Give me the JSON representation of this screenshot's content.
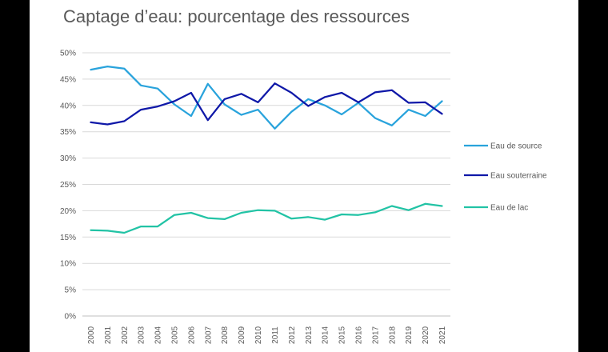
{
  "title": "Captage d’eau: pourcentage des ressources",
  "chart_data": {
    "type": "line",
    "title": "Captage d’eau: pourcentage des ressources",
    "x": [
      "2000",
      "2001",
      "2002",
      "2003",
      "2004",
      "2005",
      "2006",
      "2007",
      "2008",
      "2009",
      "2010",
      "2011",
      "2012",
      "2013",
      "2014",
      "2015",
      "2016",
      "2017",
      "2018",
      "2019",
      "2020",
      "2021"
    ],
    "y_ticks": [
      "0%",
      "5%",
      "10%",
      "15%",
      "20%",
      "25%",
      "30%",
      "35%",
      "40%",
      "45%",
      "50%"
    ],
    "ylim": [
      0,
      50
    ],
    "grid": true,
    "legend_position": "right",
    "series": [
      {
        "name": "Eau de source",
        "color": "#29a3dc",
        "values": [
          46.8,
          47.4,
          47.0,
          43.8,
          43.2,
          40.2,
          38.0,
          44.1,
          40.2,
          38.2,
          39.2,
          35.6,
          38.8,
          41.2,
          40.0,
          38.3,
          40.5,
          37.6,
          36.2,
          39.2,
          38.0,
          40.8
        ]
      },
      {
        "name": "Eau souterraine",
        "color": "#0f18a8",
        "values": [
          36.8,
          36.4,
          37.0,
          39.2,
          39.8,
          40.8,
          42.4,
          37.2,
          41.2,
          42.2,
          40.6,
          44.2,
          42.4,
          39.9,
          41.6,
          42.4,
          40.6,
          42.5,
          42.9,
          40.5,
          40.6,
          38.4
        ]
      },
      {
        "name": "Eau de lac",
        "color": "#22c3a5",
        "values": [
          16.3,
          16.2,
          15.8,
          17.0,
          17.0,
          19.2,
          19.6,
          18.6,
          18.4,
          19.6,
          20.1,
          20.0,
          18.5,
          18.8,
          18.3,
          19.3,
          19.2,
          19.7,
          20.9,
          20.1,
          21.3,
          20.9
        ]
      }
    ]
  }
}
